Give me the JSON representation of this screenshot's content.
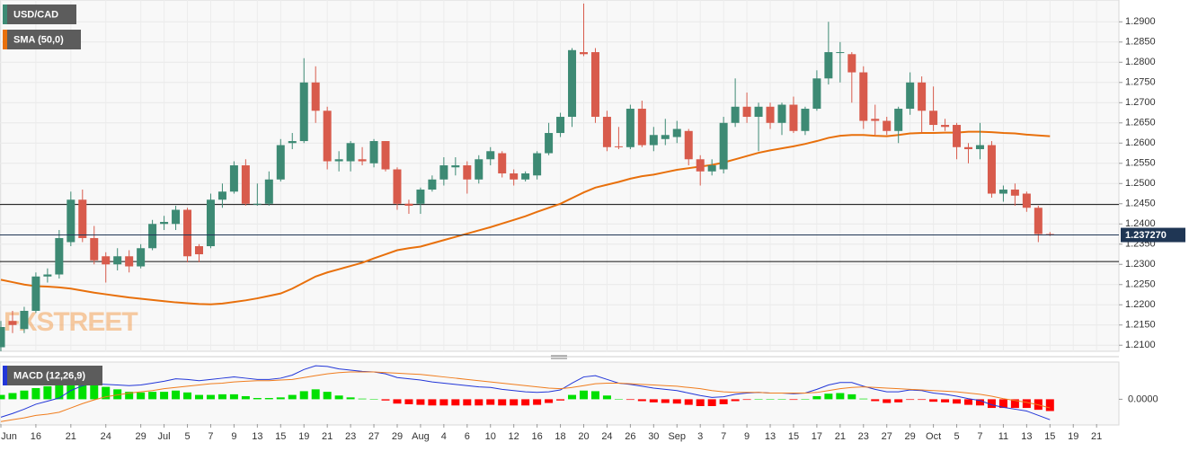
{
  "chart_data": [
    {
      "type": "candlestick",
      "symbol": "USD/CAD",
      "categories": [
        "Jun",
        null,
        null,
        "16",
        null,
        null,
        "21",
        null,
        null,
        "24",
        null,
        null,
        "29",
        null,
        "Jul",
        null,
        "5",
        null,
        "7",
        null,
        "9",
        null,
        "13",
        null,
        "15",
        null,
        "19",
        null,
        "21",
        null,
        "23",
        null,
        "27",
        null,
        "29",
        null,
        "Aug",
        null,
        "4",
        null,
        "6",
        null,
        "10",
        null,
        "12",
        null,
        "16",
        null,
        "18",
        null,
        "20",
        null,
        "24",
        null,
        "26",
        null,
        "30",
        null,
        "Sep",
        null,
        "3",
        null,
        "7",
        null,
        "9",
        null,
        "13",
        null,
        "15",
        null,
        "17",
        null,
        "21",
        null,
        "23",
        null,
        "27",
        null,
        "29",
        null,
        "Oct",
        null,
        "5",
        null,
        "7",
        null,
        "11",
        null,
        "13",
        null,
        "15",
        null,
        "19",
        null,
        "21"
      ],
      "open": [
        1.2095,
        1.216,
        1.214,
        1.2185,
        1.227,
        1.2275,
        1.2355,
        1.246,
        1.2365,
        1.232,
        1.23,
        1.232,
        1.2295,
        1.234,
        1.24,
        1.24,
        1.2435,
        1.2345,
        1.2345,
        1.246,
        1.248,
        1.2545,
        1.245,
        1.245,
        1.251,
        1.26,
        1.2605,
        1.275,
        1.268,
        1.2555,
        1.2555,
        1.256,
        1.255,
        1.2605,
        1.2535,
        1.245,
        1.245,
        1.2485,
        1.251,
        1.254,
        1.2545,
        1.251,
        1.256,
        1.2575,
        1.2525,
        1.251,
        1.252,
        1.2575,
        1.2625,
        1.2665,
        1.2825,
        1.2825,
        1.2665,
        1.2592,
        1.259,
        1.2685,
        1.2595,
        1.261,
        1.2615,
        1.263,
        1.256,
        1.253,
        1.2535,
        1.265,
        1.269,
        1.2665,
        1.269,
        1.265,
        1.2695,
        1.263,
        1.2685,
        1.276,
        1.2825,
        1.282,
        1.2775,
        1.266,
        1.2655,
        1.263,
        1.2685,
        1.275,
        1.268,
        1.2645,
        1.2645,
        1.259,
        1.2585,
        1.2595,
        1.2475,
        1.2485,
        1.2475,
        1.244,
        1.2375,
        null,
        null,
        null,
        null
      ],
      "high": [
        1.216,
        1.2185,
        1.2195,
        1.228,
        1.229,
        1.2385,
        1.248,
        1.2485,
        1.2395,
        1.233,
        1.234,
        1.2335,
        1.235,
        1.241,
        1.242,
        1.2445,
        1.244,
        1.235,
        1.2475,
        1.25,
        1.2555,
        1.256,
        1.25,
        1.253,
        1.261,
        1.2625,
        1.281,
        1.279,
        1.269,
        1.258,
        1.2605,
        1.259,
        1.261,
        1.2605,
        1.254,
        1.246,
        1.249,
        1.252,
        1.2565,
        1.2565,
        1.2555,
        1.257,
        1.259,
        1.258,
        1.2535,
        1.253,
        1.258,
        1.265,
        1.2675,
        1.2835,
        1.2945,
        1.2835,
        1.268,
        1.264,
        1.2695,
        1.2705,
        1.264,
        1.266,
        1.2655,
        1.2635,
        1.257,
        1.256,
        1.2665,
        1.276,
        1.2725,
        1.27,
        1.27,
        1.27,
        1.2715,
        1.269,
        1.278,
        1.29,
        1.285,
        1.2825,
        1.279,
        1.2695,
        1.2665,
        1.269,
        1.2775,
        1.2765,
        1.274,
        1.266,
        1.265,
        1.26,
        1.265,
        1.2605,
        1.2495,
        1.25,
        1.248,
        1.2445,
        1.238,
        null,
        null,
        null,
        null
      ],
      "low": [
        1.208,
        1.213,
        1.213,
        1.218,
        1.2255,
        1.2265,
        1.2345,
        1.2355,
        1.23,
        1.2255,
        1.2285,
        1.228,
        1.229,
        1.2335,
        1.2385,
        1.2385,
        1.2305,
        1.2305,
        1.234,
        1.244,
        1.2475,
        1.2445,
        1.2445,
        1.2445,
        1.2505,
        1.2585,
        1.26,
        1.265,
        1.2535,
        1.253,
        1.253,
        1.2545,
        1.254,
        1.253,
        1.2435,
        1.2425,
        1.2425,
        1.248,
        1.2495,
        1.252,
        1.2475,
        1.25,
        1.2545,
        1.2515,
        1.2495,
        1.2505,
        1.251,
        1.257,
        1.2615,
        1.264,
        1.2815,
        1.265,
        1.258,
        1.2585,
        1.2585,
        1.259,
        1.258,
        1.2595,
        1.26,
        1.2545,
        1.2495,
        1.252,
        1.2525,
        1.264,
        1.265,
        1.258,
        1.2635,
        1.262,
        1.2625,
        1.262,
        1.268,
        1.2745,
        1.275,
        1.27,
        1.2635,
        1.262,
        1.262,
        1.26,
        1.267,
        1.2625,
        1.263,
        1.263,
        1.256,
        1.255,
        1.256,
        1.2465,
        1.2455,
        1.2445,
        1.243,
        1.2355,
        1.237,
        null,
        null,
        null,
        null
      ],
      "close": [
        1.2145,
        1.215,
        1.2185,
        1.227,
        1.2275,
        1.2365,
        1.246,
        1.2365,
        1.231,
        1.23,
        1.232,
        1.2295,
        1.234,
        1.24,
        1.2405,
        1.2435,
        1.232,
        1.2325,
        1.246,
        1.248,
        1.2545,
        1.245,
        1.245,
        1.251,
        1.2595,
        1.2605,
        1.275,
        1.268,
        1.2555,
        1.256,
        1.26,
        1.2555,
        1.2605,
        1.2535,
        1.245,
        1.2445,
        1.2485,
        1.251,
        1.2545,
        1.2545,
        1.251,
        1.256,
        1.258,
        1.2525,
        1.251,
        1.2525,
        1.2575,
        1.2625,
        1.2665,
        1.283,
        1.282,
        1.2665,
        1.259,
        1.259,
        1.2685,
        1.2595,
        1.262,
        1.262,
        1.2635,
        1.256,
        1.253,
        1.2545,
        1.265,
        1.269,
        1.2665,
        1.269,
        1.265,
        1.2695,
        1.263,
        1.2685,
        1.276,
        1.2825,
        1.2825,
        1.2775,
        1.2655,
        1.2655,
        1.263,
        1.2685,
        1.275,
        1.268,
        1.2645,
        1.264,
        1.259,
        1.2585,
        1.2595,
        1.2475,
        1.2485,
        1.247,
        1.244,
        1.2375,
        1.23727,
        null,
        null,
        null,
        null
      ],
      "up_color": "#3d8a74",
      "down_color": "#d85b4c",
      "series": [
        {
          "name": "SMA (50,0)",
          "color": "#e8700c",
          "values": [
            1.2262,
            1.2256,
            1.225,
            1.2246,
            1.2245,
            1.2243,
            1.224,
            1.2235,
            1.223,
            1.2226,
            1.2222,
            1.2218,
            1.2215,
            1.2212,
            1.2209,
            1.2206,
            1.2204,
            1.2202,
            1.2201,
            1.2203,
            1.2207,
            1.2211,
            1.2216,
            1.2222,
            1.2228,
            1.224,
            1.2255,
            1.227,
            1.228,
            1.2288,
            1.2296,
            1.2304,
            1.2315,
            1.2325,
            1.2335,
            1.234,
            1.2344,
            1.2352,
            1.236,
            1.2368,
            1.2376,
            1.2384,
            1.2392,
            1.2401,
            1.241,
            1.2419,
            1.243,
            1.244,
            1.245,
            1.2464,
            1.2478,
            1.249,
            1.2497,
            1.2504,
            1.2512,
            1.2518,
            1.2522,
            1.2528,
            1.2534,
            1.2538,
            1.2542,
            1.2546,
            1.2552,
            1.256,
            1.2568,
            1.2576,
            1.2582,
            1.2587,
            1.2592,
            1.2598,
            1.2605,
            1.2613,
            1.2618,
            1.262,
            1.262,
            1.2618,
            1.2617,
            1.262,
            1.2624,
            1.2625,
            1.2625,
            1.2626,
            1.2626,
            1.2628,
            1.2628,
            1.2627,
            1.2625,
            1.2624,
            1.2621,
            1.2619,
            1.2617,
            null,
            null,
            null,
            null
          ]
        }
      ],
      "ylim": [
        1.2085,
        1.2954
      ],
      "yticks": [
        {
          "value": 1.21,
          "label": "1.2100"
        },
        {
          "value": 1.215,
          "label": "1.2150"
        },
        {
          "value": 1.22,
          "label": "1.2200"
        },
        {
          "value": 1.225,
          "label": "1.2250"
        },
        {
          "value": 1.23,
          "label": "1.2300"
        },
        {
          "value": 1.235,
          "label": "1.2350"
        },
        {
          "value": 1.24,
          "label": "1.2400"
        },
        {
          "value": 1.245,
          "label": "1.2450"
        },
        {
          "value": 1.25,
          "label": "1.2500"
        },
        {
          "value": 1.255,
          "label": "1.2550"
        },
        {
          "value": 1.26,
          "label": "1.2600"
        },
        {
          "value": 1.265,
          "label": "1.2650"
        },
        {
          "value": 1.27,
          "label": "1.2700"
        },
        {
          "value": 1.275,
          "label": "1.2750"
        },
        {
          "value": 1.28,
          "label": "1.2800"
        },
        {
          "value": 1.285,
          "label": "1.2850"
        },
        {
          "value": 1.29,
          "label": "1.2900"
        }
      ],
      "hlines": [
        1.2448,
        1.2307
      ],
      "last_price": 1.23727,
      "last_price_label": "1.237270",
      "last_price_color": "#1f3654",
      "grid": true,
      "watermark": "FXSTREET"
    },
    {
      "type": "macd",
      "title": "MACD (12,26,9)",
      "series": [
        {
          "color": "#2236d8",
          "values": [
            -0.0029,
            -0.0023,
            -0.0016,
            -0.0008,
            -0.0003,
            0.0002,
            0.0014,
            0.0022,
            0.0025,
            0.0024,
            0.0023,
            0.0022,
            0.0023,
            0.0026,
            0.0029,
            0.0033,
            0.0032,
            0.003,
            0.0032,
            0.0034,
            0.0036,
            0.0034,
            0.0032,
            0.0032,
            0.0034,
            0.0039,
            0.0048,
            0.0054,
            0.0053,
            0.0049,
            0.0047,
            0.0045,
            0.0044,
            0.0041,
            0.0035,
            0.0033,
            0.0031,
            0.0028,
            0.0026,
            0.0024,
            0.0022,
            0.002,
            0.0019,
            0.0016,
            0.0014,
            0.0012,
            0.0011,
            0.0012,
            0.0015,
            0.0026,
            0.0036,
            0.0038,
            0.0032,
            0.0026,
            0.0024,
            0.0021,
            0.0018,
            0.0016,
            0.0014,
            0.001,
            0.0006,
            0.0003,
            0.0004,
            0.0008,
            0.001,
            0.0011,
            0.001,
            0.001,
            0.0009,
            0.001,
            0.0016,
            0.0023,
            0.0027,
            0.0027,
            0.0021,
            0.0016,
            0.0012,
            0.0012,
            0.0015,
            0.0014,
            0.001,
            0.0008,
            0.0005,
            0.0001,
            -0.0002,
            -0.0009,
            -0.0013,
            -0.0016,
            -0.0019,
            -0.0026,
            -0.0033,
            null,
            null,
            null,
            null
          ]
        },
        {
          "color": "#f07d1e",
          "values": [
            -0.0036,
            -0.0033,
            -0.003,
            -0.0026,
            -0.0024,
            -0.0021,
            -0.0014,
            -0.0007,
            -0.0001,
            0.0004,
            0.0007,
            0.001,
            0.0012,
            0.0014,
            0.0017,
            0.0019,
            0.0021,
            0.0023,
            0.0025,
            0.0026,
            0.0028,
            0.0029,
            0.003,
            0.003,
            0.0031,
            0.0032,
            0.0035,
            0.0038,
            0.0041,
            0.0043,
            0.0044,
            0.0044,
            0.0044,
            0.0043,
            0.0042,
            0.0041,
            0.004,
            0.0038,
            0.0036,
            0.0034,
            0.0032,
            0.003,
            0.0028,
            0.0026,
            0.0024,
            0.0022,
            0.002,
            0.0018,
            0.0017,
            0.0019,
            0.0022,
            0.0025,
            0.0026,
            0.0026,
            0.0025,
            0.0024,
            0.0023,
            0.0022,
            0.0021,
            0.0019,
            0.0017,
            0.0014,
            0.0012,
            0.0011,
            0.0011,
            0.0011,
            0.001,
            0.001,
            0.001,
            0.001,
            0.0011,
            0.0014,
            0.0017,
            0.0019,
            0.002,
            0.0019,
            0.0018,
            0.0017,
            0.0016,
            0.0015,
            0.0014,
            0.0013,
            0.0012,
            0.001,
            0.0008,
            0.0005,
            0.0001,
            -0.0002,
            -0.0005,
            -0.0009,
            -0.0014,
            null,
            null,
            null,
            null
          ]
        }
      ],
      "histogram": {
        "up_color": "#00e000",
        "down_color": "#ff0000",
        "values": [
          0.0007,
          0.001,
          0.0014,
          0.0018,
          0.0021,
          0.0023,
          0.0028,
          0.0029,
          0.0026,
          0.002,
          0.0016,
          0.0012,
          0.0011,
          0.0012,
          0.0012,
          0.0014,
          0.0011,
          0.0007,
          0.0007,
          0.0008,
          0.0008,
          0.0005,
          0.0002,
          0.0002,
          0.0003,
          0.0007,
          0.0013,
          0.0016,
          0.0012,
          0.0006,
          0.0003,
          0.0001,
          0,
          -0.0002,
          -0.0007,
          -0.0008,
          -0.0009,
          -0.001,
          -0.001,
          -0.001,
          -0.001,
          -0.001,
          -0.0009,
          -0.001,
          -0.001,
          -0.001,
          -0.0009,
          -0.0006,
          -0.0002,
          0.0007,
          0.0014,
          0.0013,
          0.0006,
          0,
          -0.0001,
          -0.0003,
          -0.0005,
          -0.0006,
          -0.0007,
          -0.0009,
          -0.0011,
          -0.0011,
          -0.0008,
          -0.0003,
          -0.0001,
          0,
          0,
          0,
          -0.0001,
          0,
          0.0005,
          0.0009,
          0.001,
          0.0008,
          0.0001,
          -0.0003,
          -0.0006,
          -0.0005,
          -0.0001,
          -0.0001,
          -0.0004,
          -0.0005,
          -0.0007,
          -0.0009,
          -0.001,
          -0.0014,
          -0.0014,
          -0.0014,
          -0.0014,
          -0.0017,
          -0.0019,
          null,
          null,
          null,
          null
        ]
      },
      "ylim": [
        -0.004,
        0.006
      ],
      "yticks": [
        {
          "value": 0,
          "label": "0.0000"
        }
      ]
    }
  ]
}
